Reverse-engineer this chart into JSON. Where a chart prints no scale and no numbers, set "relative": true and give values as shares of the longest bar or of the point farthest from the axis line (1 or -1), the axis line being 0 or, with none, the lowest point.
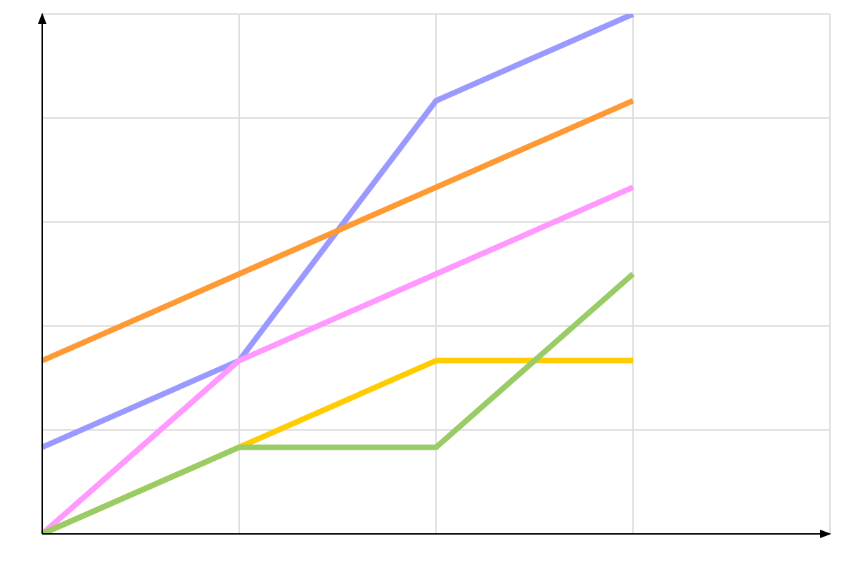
{
  "chart_data": {
    "type": "line",
    "relative": true,
    "categories": [
      null,
      null,
      null,
      null,
      null
    ],
    "series": [
      {
        "color": "#9999ff",
        "values": [
          0.1667,
          0.3333,
          0.8333,
          1,
          null
        ]
      },
      {
        "color": "#ff9933",
        "values": [
          0.3333,
          0.5,
          0.6667,
          0.8333,
          null
        ]
      },
      {
        "color": "#ff99ff",
        "values": [
          0,
          0.3333,
          0.5,
          0.6667,
          null
        ]
      },
      {
        "color": "#ffcc00",
        "values": [
          0,
          0.1667,
          0.3333,
          0.3333,
          null
        ]
      },
      {
        "color": "#99cc66",
        "values": [
          0,
          0.1667,
          0.1667,
          0.5,
          null
        ]
      }
    ],
    "grid": true,
    "legend": false,
    "marker": "none",
    "line_style": "solid",
    "tick_labels": false
  }
}
